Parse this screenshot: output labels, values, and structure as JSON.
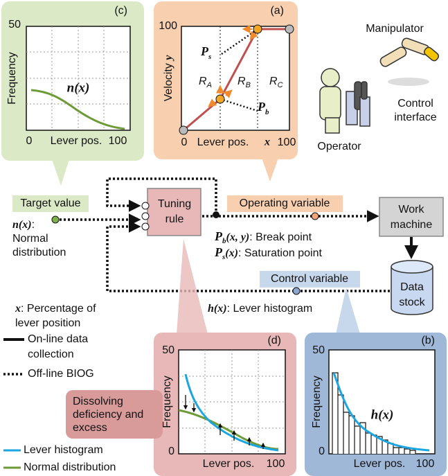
{
  "panel_c": {
    "label": "(c)",
    "y_axis": "Frequency",
    "x_axis": "Lever pos.",
    "y_top": "50",
    "x_left": "0",
    "x_right": "100",
    "curve_label": "n(x)"
  },
  "panel_a": {
    "label": "(a)",
    "y_axis": "Velocity",
    "y_var": "y",
    "x_axis": "Lever pos.",
    "x_var": "x",
    "y_top": "100",
    "x_left": "0",
    "x_right": "100",
    "regions": [
      {
        "symbol": "R",
        "sub": "A"
      },
      {
        "symbol": "R",
        "sub": "B"
      },
      {
        "symbol": "R",
        "sub": "C"
      }
    ],
    "point_s": {
      "symbol": "P",
      "sub": "s"
    },
    "point_b": {
      "symbol": "P",
      "sub": "b"
    }
  },
  "scene": {
    "manipulator": "Manipulator",
    "control_interface": [
      "Control",
      "interface"
    ],
    "operator": "Operator"
  },
  "flow": {
    "target_value": "Target value",
    "tuning_rule": [
      "Tuning",
      "rule"
    ],
    "operating_variable": "Operating variable",
    "work_machine": [
      "Work",
      "machine"
    ],
    "data_stock": [
      "Data",
      "stock"
    ],
    "control_variable": "Control variable",
    "n_def": {
      "symbol": "n(x)",
      "colon": ":",
      "lines": [
        "Normal",
        "distribution"
      ]
    },
    "break_point": {
      "symbol": "P",
      "sub": "b",
      "args": "(x, y)",
      "text": ": Break point"
    },
    "saturation_point": {
      "symbol": "P",
      "sub": "s",
      "args": "(x)",
      "text": ": Saturation point"
    },
    "h_def": {
      "symbol": "h(x)",
      "text": ":  Lever histogram"
    },
    "x_def": {
      "symbol": "x",
      "lines": [
        ": Percentage of",
        "lever position"
      ]
    }
  },
  "legend": {
    "online": [
      "On-line data",
      "collection"
    ],
    "offline": "Off-line BIOG",
    "lever_histogram": "Lever histogram",
    "normal_distribution": "Normal distribution"
  },
  "panel_d": {
    "label": "(d)",
    "y_axis": "Frequency",
    "x_axis": "Lever pos.",
    "y_top": "50",
    "y_bottom": "0",
    "x_right": "100",
    "callout": [
      "Dissolving",
      "deficiency and",
      "excess"
    ]
  },
  "panel_b": {
    "label": "(b)",
    "y_axis": "Frequency",
    "x_axis": "Lever pos.",
    "y_top": "50",
    "y_bottom": "0",
    "x_right": "100",
    "curve_label": "h(x)"
  }
}
